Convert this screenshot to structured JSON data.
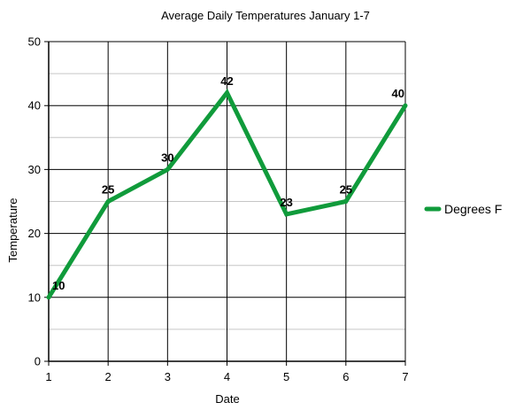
{
  "chart_data": {
    "type": "line",
    "title": "Average Daily Temperatures January 1-7",
    "xlabel": "Date",
    "ylabel": "Temperature",
    "x": [
      1,
      2,
      3,
      4,
      5,
      6,
      7
    ],
    "xlim": [
      1,
      7
    ],
    "ylim": [
      0,
      50
    ],
    "yticks": [
      0,
      10,
      20,
      30,
      40,
      50
    ],
    "grid": true,
    "legend": "right",
    "series": [
      {
        "name": "Degrees F",
        "color": "#109b3b",
        "values": [
          10,
          25,
          30,
          42,
          23,
          25,
          40
        ]
      }
    ]
  }
}
